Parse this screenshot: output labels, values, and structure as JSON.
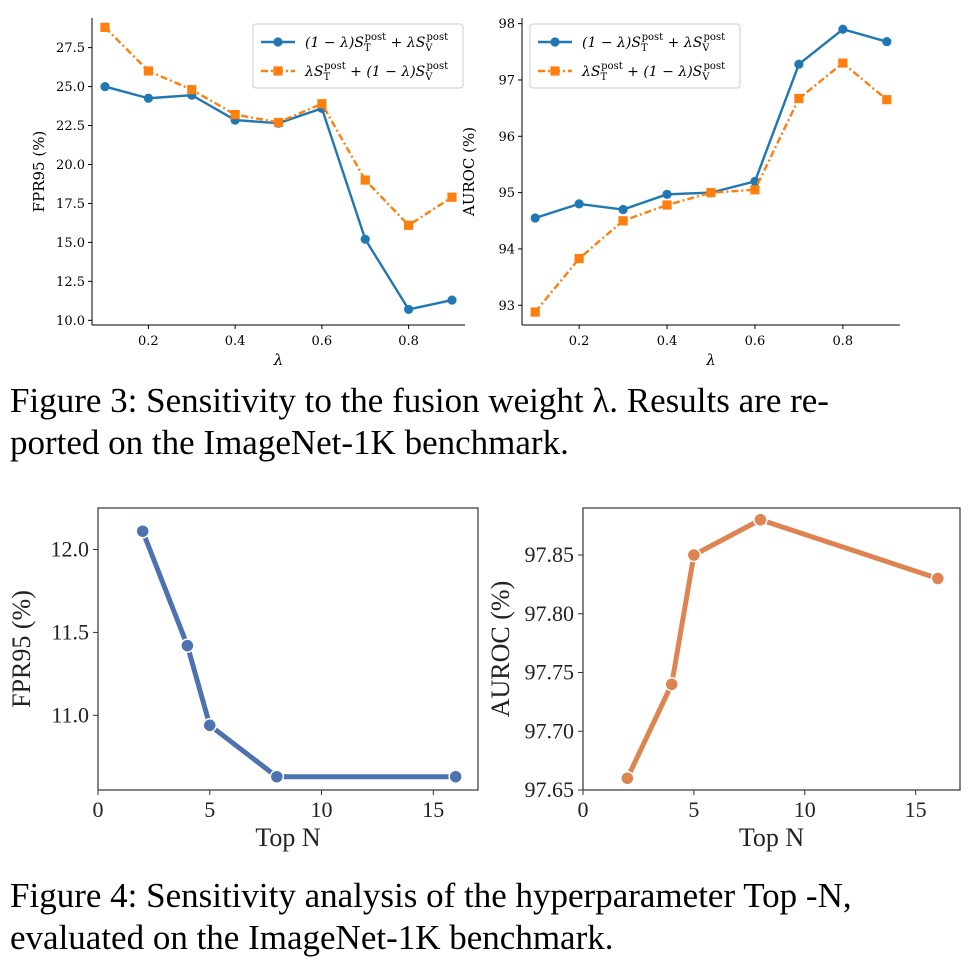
{
  "figure3": {
    "caption_lines": [
      "Figure 3: Sensitivity to the fusion weight λ. Results are re-",
      "ported on the ImageNet-1K benchmark."
    ]
  },
  "figure4": {
    "caption_lines": [
      "Figure 4: Sensitivity analysis of the hyperparameter Top -N,",
      "evaluated on the ImageNet-1K benchmark."
    ]
  },
  "colors": {
    "blue": "#1f77b4",
    "orange": "#ff7f0e",
    "topn_blue": "#4c72b0",
    "topn_orange": "#dd8452"
  },
  "chart_data": [
    {
      "id": "fpr_lambda",
      "type": "line",
      "xlabel": "λ",
      "ylabel": "FPR95 (%)",
      "xlim": [
        0.07,
        0.93
      ],
      "ylim": [
        9.7,
        29.4
      ],
      "xticks": [
        0.2,
        0.4,
        0.6,
        0.8
      ],
      "xtick_labels": [
        "0.2",
        "0.4",
        "0.6",
        "0.8"
      ],
      "yticks": [
        10.0,
        12.5,
        15.0,
        17.5,
        20.0,
        22.5,
        25.0,
        27.5
      ],
      "ytick_labels": [
        "10.0",
        "12.5",
        "15.0",
        "17.5",
        "20.0",
        "22.5",
        "25.0",
        "27.5"
      ],
      "legend": "top-right",
      "series": [
        {
          "name": "(1−λ)S_T^post + λS_V^post",
          "x": [
            0.1,
            0.2,
            0.3,
            0.4,
            0.5,
            0.6,
            0.7,
            0.8,
            0.9
          ],
          "values": [
            25.0,
            24.25,
            24.45,
            22.85,
            22.65,
            23.6,
            15.2,
            10.7,
            11.3
          ]
        },
        {
          "name": "λS_T^post + (1−λ)S_V^post",
          "x": [
            0.1,
            0.2,
            0.3,
            0.4,
            0.5,
            0.6,
            0.7,
            0.8,
            0.9
          ],
          "values": [
            28.8,
            26.0,
            24.8,
            23.2,
            22.7,
            23.9,
            19.0,
            16.1,
            17.9
          ]
        }
      ]
    },
    {
      "id": "auroc_lambda",
      "type": "line",
      "xlabel": "λ",
      "ylabel": "AUROC (%)",
      "xlim": [
        0.07,
        0.93
      ],
      "ylim": [
        92.65,
        98.1
      ],
      "xticks": [
        0.2,
        0.4,
        0.6,
        0.8
      ],
      "xtick_labels": [
        "0.2",
        "0.4",
        "0.6",
        "0.8"
      ],
      "yticks": [
        93,
        94,
        95,
        96,
        97,
        98
      ],
      "ytick_labels": [
        "93",
        "94",
        "95",
        "96",
        "97",
        "98"
      ],
      "legend": "top-left",
      "series": [
        {
          "name": "(1−λ)S_T^post + λS_V^post",
          "x": [
            0.1,
            0.2,
            0.3,
            0.4,
            0.5,
            0.6,
            0.7,
            0.8,
            0.9
          ],
          "values": [
            94.55,
            94.8,
            94.7,
            94.97,
            95.0,
            95.2,
            97.28,
            97.9,
            97.68
          ]
        },
        {
          "name": "λS_T^post + (1−λ)S_V^post",
          "x": [
            0.1,
            0.2,
            0.3,
            0.4,
            0.5,
            0.6,
            0.7,
            0.8,
            0.9
          ],
          "values": [
            92.88,
            93.83,
            94.5,
            94.78,
            95.0,
            95.05,
            96.67,
            97.3,
            96.65
          ]
        }
      ]
    },
    {
      "id": "fpr_topn",
      "type": "line",
      "xlabel": "Top N",
      "ylabel": "FPR95 (%)",
      "xlim": [
        0,
        17
      ],
      "ylim": [
        10.55,
        12.25
      ],
      "xticks": [
        0,
        5,
        10,
        15
      ],
      "xtick_labels": [
        "0",
        "5",
        "10",
        "15"
      ],
      "yticks": [
        11.0,
        11.5,
        12.0
      ],
      "ytick_labels": [
        "11.0",
        "11.5",
        "12.0"
      ],
      "series": [
        {
          "name": "FPR95",
          "x": [
            2,
            4,
            5,
            8,
            16
          ],
          "values": [
            12.11,
            11.42,
            10.94,
            10.63,
            10.63
          ]
        }
      ]
    },
    {
      "id": "auroc_topn",
      "type": "line",
      "xlabel": "Top N",
      "ylabel": "AUROC (%)",
      "xlim": [
        0,
        17
      ],
      "ylim": [
        97.65,
        97.89
      ],
      "xticks": [
        0,
        5,
        10,
        15
      ],
      "xtick_labels": [
        "0",
        "5",
        "10",
        "15"
      ],
      "yticks": [
        97.65,
        97.7,
        97.75,
        97.8,
        97.85
      ],
      "ytick_labels": [
        "97.65",
        "97.70",
        "97.75",
        "97.80",
        "97.85"
      ],
      "series": [
        {
          "name": "AUROC",
          "x": [
            2,
            4,
            5,
            8,
            16
          ],
          "values": [
            97.66,
            97.74,
            97.85,
            97.88,
            97.83
          ]
        }
      ]
    }
  ]
}
